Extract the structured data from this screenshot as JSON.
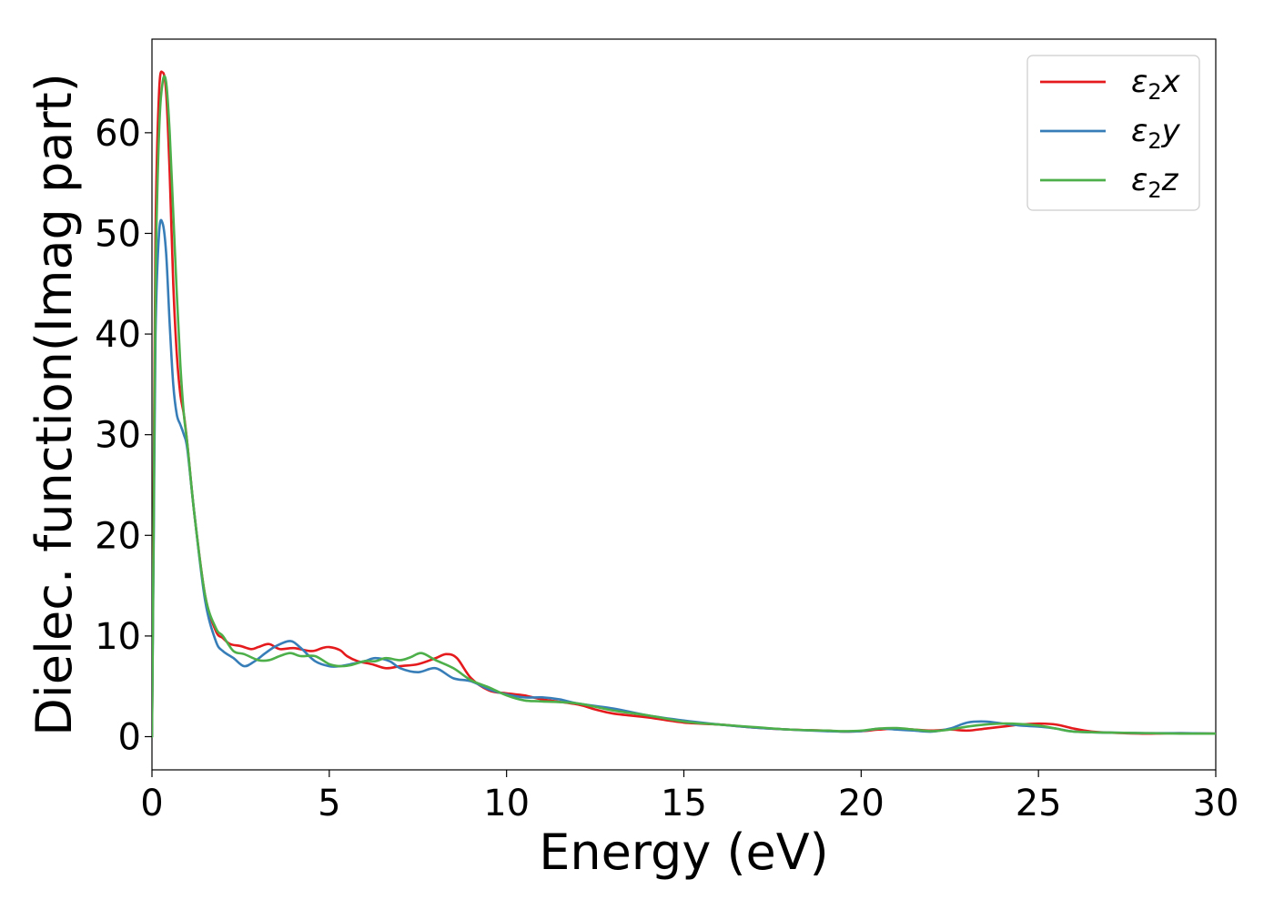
{
  "chart_data": {
    "type": "line",
    "xlabel": "Energy (eV)",
    "ylabel": "Dielec. function(Imag part)",
    "xlim": [
      0,
      30
    ],
    "ylim": [
      -3.3,
      69.3
    ],
    "xticks": [
      0,
      5,
      10,
      15,
      20,
      25,
      30
    ],
    "yticks": [
      0,
      10,
      20,
      30,
      40,
      50,
      60
    ],
    "grid": false,
    "legend_position": "top-right",
    "series": [
      {
        "name": "ε2x",
        "legend": {
          "base": "ε",
          "sub": "2",
          "axis": "x"
        },
        "color": "#e41a1c",
        "x": [
          0,
          0.05,
          0.1,
          0.2,
          0.3,
          0.4,
          0.5,
          0.6,
          0.7,
          0.8,
          0.9,
          1.0,
          1.2,
          1.5,
          1.8,
          2.0,
          2.2,
          2.5,
          2.8,
          3.0,
          3.3,
          3.6,
          4.0,
          4.5,
          4.8,
          5.0,
          5.3,
          5.5,
          5.8,
          6.2,
          6.6,
          7.0,
          7.5,
          8.0,
          8.3,
          8.6,
          9.0,
          9.5,
          10.0,
          10.5,
          11.0,
          12.0,
          12.5,
          13.0,
          14.0,
          15.0,
          16.0,
          17.0,
          18.0,
          19.0,
          19.5,
          20.0,
          20.5,
          21.0,
          21.5,
          22.0,
          22.5,
          23.0,
          23.5,
          24.0,
          24.5,
          25.0,
          25.5,
          26.0,
          26.5,
          27.0,
          28.0,
          29.0,
          30.0
        ],
        "y": [
          0,
          25,
          50,
          64,
          66,
          64,
          56,
          45,
          38,
          34,
          32,
          29,
          22,
          14,
          10.5,
          9.8,
          9.2,
          9.0,
          8.7,
          8.9,
          9.2,
          8.7,
          8.8,
          8.5,
          8.8,
          8.9,
          8.6,
          8.0,
          7.5,
          7.2,
          6.8,
          7.0,
          7.2,
          7.8,
          8.2,
          7.8,
          5.8,
          4.6,
          4.3,
          4.1,
          3.7,
          3.2,
          2.7,
          2.3,
          1.9,
          1.4,
          1.2,
          0.9,
          0.7,
          0.6,
          0.5,
          0.55,
          0.7,
          0.8,
          0.7,
          0.6,
          0.7,
          0.6,
          0.8,
          1.0,
          1.2,
          1.3,
          1.2,
          0.8,
          0.5,
          0.4,
          0.3,
          0.35,
          0.3
        ]
      },
      {
        "name": "ε2y",
        "legend": {
          "base": "ε",
          "sub": "2",
          "axis": "y"
        },
        "color": "#377eb8",
        "x": [
          0,
          0.05,
          0.1,
          0.2,
          0.3,
          0.4,
          0.5,
          0.6,
          0.7,
          0.8,
          0.9,
          1.0,
          1.2,
          1.5,
          1.8,
          2.0,
          2.3,
          2.6,
          2.9,
          3.2,
          3.5,
          3.9,
          4.2,
          4.6,
          5.0,
          5.3,
          5.6,
          6.0,
          6.3,
          6.7,
          7.0,
          7.5,
          8.0,
          8.5,
          9.0,
          9.5,
          10.0,
          10.5,
          11.0,
          11.5,
          12.0,
          13.0,
          14.0,
          15.0,
          16.0,
          17.0,
          18.0,
          19.0,
          19.5,
          20.0,
          20.5,
          21.0,
          21.5,
          22.0,
          22.5,
          23.0,
          23.5,
          24.0,
          24.5,
          25.0,
          25.5,
          26.0,
          27.0,
          28.0,
          29.0,
          30.0
        ],
        "y": [
          0,
          20,
          40,
          50,
          51,
          48,
          41,
          35,
          32,
          31,
          30,
          28.5,
          22,
          13.5,
          9.5,
          8.5,
          7.8,
          7.0,
          7.5,
          8.3,
          9.0,
          9.5,
          8.8,
          7.5,
          7.0,
          7.0,
          7.2,
          7.5,
          7.8,
          7.5,
          6.8,
          6.4,
          6.8,
          5.8,
          5.5,
          4.7,
          4.2,
          3.9,
          3.9,
          3.7,
          3.3,
          2.8,
          2.1,
          1.6,
          1.2,
          0.9,
          0.7,
          0.55,
          0.5,
          0.55,
          0.8,
          0.7,
          0.6,
          0.5,
          0.8,
          1.4,
          1.5,
          1.3,
          1.1,
          1.0,
          0.8,
          0.5,
          0.4,
          0.35,
          0.35,
          0.3
        ]
      },
      {
        "name": "ε2z",
        "legend": {
          "base": "ε",
          "sub": "2",
          "axis": "z"
        },
        "color": "#4daf4a",
        "x": [
          0,
          0.05,
          0.1,
          0.2,
          0.3,
          0.4,
          0.5,
          0.6,
          0.7,
          0.8,
          0.9,
          1.0,
          1.2,
          1.5,
          1.8,
          2.0,
          2.3,
          2.6,
          3.0,
          3.3,
          3.6,
          3.9,
          4.2,
          4.6,
          5.0,
          5.3,
          5.6,
          6.0,
          6.3,
          6.6,
          7.0,
          7.3,
          7.6,
          8.0,
          8.5,
          9.0,
          9.5,
          10.0,
          10.5,
          11.0,
          12.0,
          13.0,
          14.0,
          15.0,
          16.0,
          17.0,
          18.0,
          19.0,
          19.5,
          20.0,
          20.5,
          21.0,
          21.5,
          22.0,
          22.5,
          23.0,
          23.5,
          24.0,
          24.5,
          25.0,
          25.5,
          26.0,
          27.0,
          28.0,
          29.0,
          30.0
        ],
        "y": [
          0,
          22,
          45,
          60,
          65,
          65,
          60,
          52,
          44,
          37,
          32,
          29,
          22,
          14,
          10.8,
          10.0,
          8.5,
          8.2,
          7.6,
          7.6,
          8.0,
          8.3,
          8.0,
          8.0,
          7.2,
          7.0,
          7.1,
          7.5,
          7.5,
          7.8,
          7.6,
          7.9,
          8.3,
          7.6,
          6.8,
          5.6,
          4.9,
          4.1,
          3.6,
          3.5,
          3.3,
          2.6,
          2.1,
          1.5,
          1.2,
          0.95,
          0.7,
          0.6,
          0.55,
          0.6,
          0.8,
          0.85,
          0.7,
          0.55,
          0.7,
          1.0,
          1.2,
          1.3,
          1.25,
          1.1,
          0.8,
          0.5,
          0.4,
          0.35,
          0.3,
          0.3
        ]
      }
    ]
  }
}
